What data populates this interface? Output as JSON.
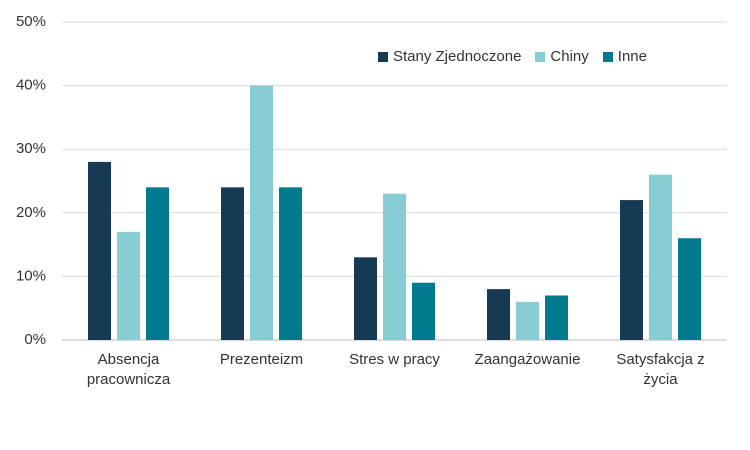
{
  "chart_data": {
    "type": "bar",
    "categories": [
      "Absencja pracownicza",
      "Prezenteizm",
      "Stres w pracy",
      "Zaangażowanie",
      "Satysfakcja z życia"
    ],
    "series": [
      {
        "name": "Stany Zjednoczone",
        "color": "#163a54",
        "values": [
          28,
          24,
          13,
          8,
          22
        ]
      },
      {
        "name": "Chiny",
        "color": "#88cdd4",
        "values": [
          17,
          40,
          23,
          6,
          26
        ]
      },
      {
        "name": "Inne",
        "color": "#007a8c",
        "values": [
          24,
          24,
          9,
          7,
          16
        ]
      }
    ],
    "ylim": [
      0,
      50
    ],
    "yticks": [
      {
        "value": 0,
        "label": "0%"
      },
      {
        "value": 10,
        "label": "10%"
      },
      {
        "value": 20,
        "label": "20%"
      },
      {
        "value": 30,
        "label": "30%"
      },
      {
        "value": 40,
        "label": "40%"
      },
      {
        "value": 50,
        "label": "50%"
      }
    ],
    "grid": true,
    "legend": "top-right"
  }
}
